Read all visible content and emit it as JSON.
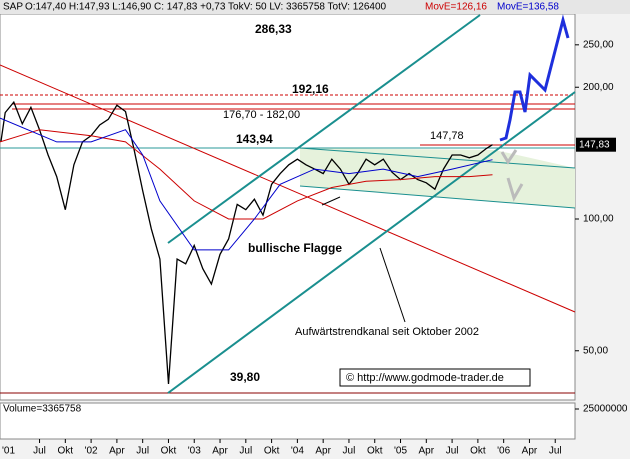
{
  "chart_data": {
    "type": "line",
    "header": "O:147,40 H:147,93 L:146,90 C: 147,83 +0,73 TokV: 50 LV: 3365758 TotV: 126400",
    "log_scale": true,
    "xlim": [
      1.4,
      68.3
    ],
    "ylim": [
      39,
      294
    ],
    "xticks": [
      {
        "value": 0,
        "label": "'01"
      },
      {
        "value": 6,
        "label": "Jul"
      },
      {
        "value": 9,
        "label": "Okt"
      },
      {
        "value": 12,
        "label": "'02"
      },
      {
        "value": 15,
        "label": "Apr"
      },
      {
        "value": 18,
        "label": "Jul"
      },
      {
        "value": 21,
        "label": "Okt"
      },
      {
        "value": 24,
        "label": "'03"
      },
      {
        "value": 27,
        "label": "Apr"
      },
      {
        "value": 30,
        "label": "Jul"
      },
      {
        "value": 33,
        "label": "Okt"
      },
      {
        "value": 36,
        "label": "'04"
      },
      {
        "value": 39,
        "label": "Apr"
      },
      {
        "value": 42,
        "label": "Jul"
      },
      {
        "value": 45,
        "label": "Okt"
      },
      {
        "value": 48,
        "label": "'05"
      },
      {
        "value": 51,
        "label": "Apr"
      },
      {
        "value": 54,
        "label": "Jul"
      },
      {
        "value": 57,
        "label": "Okt"
      },
      {
        "value": 60,
        "label": "'06"
      },
      {
        "value": 63,
        "label": "Apr"
      },
      {
        "value": 66,
        "label": "Jul"
      }
    ],
    "yticks": [
      {
        "value": 250,
        "label": "250,00"
      },
      {
        "value": 200,
        "label": "200,00"
      },
      {
        "value": 100,
        "label": "100,00"
      },
      {
        "value": 50,
        "label": "50,00"
      }
    ],
    "price_tag": {
      "value": 147.83,
      "label": "147,83"
    },
    "series": [
      {
        "name": "SAP",
        "color": "#000000",
        "x": [
          1.5,
          2,
          3,
          4,
          5,
          6,
          7,
          8,
          9,
          10,
          11,
          12,
          13,
          14,
          15,
          16,
          17,
          18,
          19,
          20,
          21,
          22,
          23,
          24,
          25,
          26,
          27,
          28,
          29,
          30,
          31,
          32,
          33,
          34,
          35,
          36,
          37,
          38,
          39,
          40,
          41,
          42,
          43,
          44,
          45,
          46,
          47,
          48,
          49,
          50,
          51,
          52,
          53,
          54,
          55,
          56,
          57,
          58,
          58.7
        ],
        "values": [
          150,
          175,
          185,
          165,
          180,
          160,
          140,
          125,
          105,
          133,
          150,
          155,
          164,
          169,
          182,
          176,
          144,
          116,
          95,
          81,
          42,
          81,
          79,
          87,
          77,
          71,
          83,
          90,
          108,
          105,
          111,
          102,
          120,
          127,
          133,
          137,
          133,
          130,
          127,
          137,
          130,
          120,
          127,
          137,
          133,
          137,
          128,
          123,
          127,
          123,
          121,
          117,
          130,
          140,
          140,
          138,
          140,
          145,
          147.83
        ]
      },
      {
        "name": "MovE=126,16",
        "color": "#cc0000",
        "x": [
          1.4,
          6,
          12,
          16,
          20,
          24,
          28,
          32,
          36,
          40,
          44,
          48,
          52,
          56,
          58.7
        ],
        "values": [
          150,
          160,
          155,
          150,
          130,
          110,
          100,
          100,
          110,
          118,
          122,
          123,
          125,
          125,
          126.16
        ]
      },
      {
        "name": "MovE=136,58",
        "color": "#0000cc",
        "x": [
          1.4,
          8,
          12,
          16,
          18,
          20,
          24,
          28,
          31,
          34,
          38,
          42,
          46,
          50,
          54,
          58.7
        ],
        "values": [
          170,
          150,
          150,
          160,
          140,
          110,
          85,
          85,
          100,
          120,
          130,
          127,
          130,
          125,
          130,
          136.58
        ]
      }
    ],
    "annotations": [
      "286,33",
      "192,16",
      "176,70 - 182,00",
      "143,94",
      "147,78",
      "bullische Flagge",
      "Aufwärtstrendkanal seit Oktober 2002",
      "39,80",
      "© http://www.godmode-trader.de"
    ],
    "volume_label": "Volume=3365758",
    "volume_ylim": [
      0,
      30000000
    ],
    "volume_yticks": [
      25000000
    ]
  }
}
